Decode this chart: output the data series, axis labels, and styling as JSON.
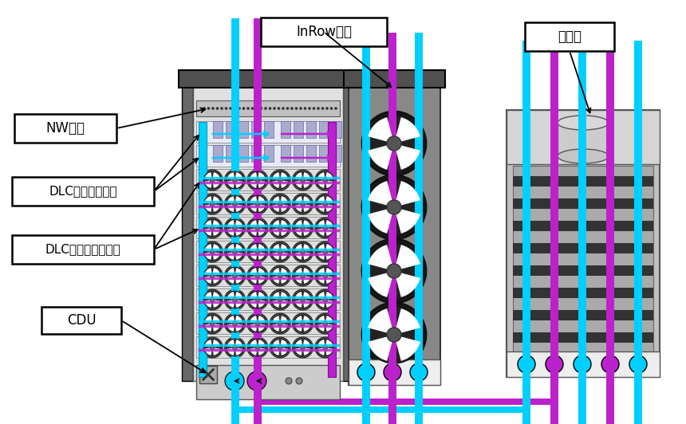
{
  "bg_color": "#ffffff",
  "labels": {
    "nw": "NW機器",
    "dlc_server": "DLC対応サーバー",
    "dlc_high": "DLC対応高発熱装置",
    "cdu": "CDU",
    "inrow": "InRow空調",
    "tower": "冷却塔"
  },
  "colors": {
    "rack_body": "#d8d8d8",
    "rack_dark": "#686868",
    "rack_top": "#505050",
    "pipe_blue": "#00cfff",
    "pipe_purple": "#bb22cc",
    "fan_body": "#222222",
    "fan_ring": "#444444",
    "fan_blade": "#ffffff",
    "cooling_body": "#b8b8b8",
    "cooling_stripe": "#333333",
    "inrow_body": "#888888"
  }
}
